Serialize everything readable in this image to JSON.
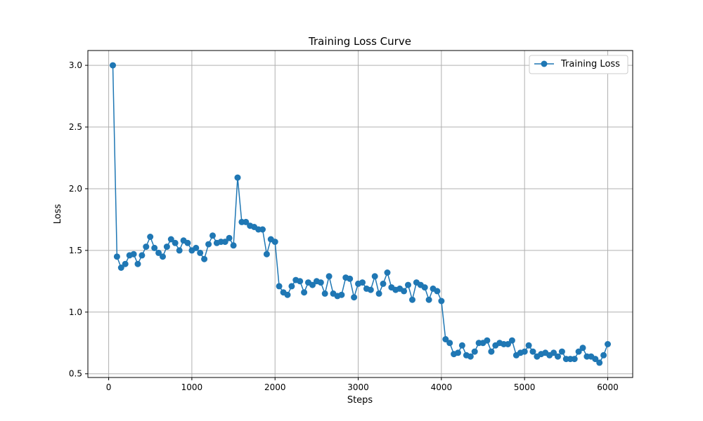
{
  "chart_data": {
    "type": "line",
    "title": "Training Loss Curve",
    "xlabel": "Steps",
    "ylabel": "Loss",
    "xlim": [
      -250,
      6300
    ],
    "ylim": [
      0.47,
      3.12
    ],
    "xticks": [
      0,
      1000,
      2000,
      3000,
      4000,
      5000,
      6000
    ],
    "yticks": [
      0.5,
      1.0,
      1.5,
      2.0,
      2.5,
      3.0
    ],
    "xtick_labels": [
      "0",
      "1000",
      "2000",
      "3000",
      "4000",
      "5000",
      "6000"
    ],
    "ytick_labels": [
      "0.5",
      "1.0",
      "1.5",
      "2.0",
      "2.5",
      "3.0"
    ],
    "grid": true,
    "legend_position": "top-right",
    "series": [
      {
        "name": "Training Loss",
        "color": "#1f77b4",
        "marker": "circle",
        "x": [
          50,
          100,
          150,
          200,
          250,
          300,
          350,
          400,
          450,
          500,
          550,
          600,
          650,
          700,
          750,
          800,
          850,
          900,
          950,
          1000,
          1050,
          1100,
          1150,
          1200,
          1250,
          1300,
          1350,
          1400,
          1450,
          1500,
          1550,
          1600,
          1650,
          1700,
          1750,
          1800,
          1850,
          1900,
          1950,
          2000,
          2050,
          2100,
          2150,
          2200,
          2250,
          2300,
          2350,
          2400,
          2450,
          2500,
          2550,
          2600,
          2650,
          2700,
          2750,
          2800,
          2850,
          2900,
          2950,
          3000,
          3050,
          3100,
          3150,
          3200,
          3250,
          3300,
          3350,
          3400,
          3450,
          3500,
          3550,
          3600,
          3650,
          3700,
          3750,
          3800,
          3850,
          3900,
          3950,
          4000,
          4050,
          4100,
          4150,
          4200,
          4250,
          4300,
          4350,
          4400,
          4450,
          4500,
          4550,
          4600,
          4650,
          4700,
          4750,
          4800,
          4850,
          4900,
          4950,
          5000,
          5050,
          5100,
          5150,
          5200,
          5250,
          5300,
          5350,
          5400,
          5450,
          5500,
          5550,
          5600,
          5650,
          5700,
          5750,
          5800,
          5850,
          5900,
          5950,
          6000
        ],
        "y": [
          3.0,
          1.45,
          1.36,
          1.39,
          1.46,
          1.47,
          1.39,
          1.46,
          1.53,
          1.61,
          1.52,
          1.48,
          1.45,
          1.53,
          1.59,
          1.56,
          1.5,
          1.58,
          1.56,
          1.5,
          1.52,
          1.48,
          1.43,
          1.55,
          1.62,
          1.56,
          1.57,
          1.57,
          1.6,
          1.54,
          2.09,
          1.73,
          1.73,
          1.7,
          1.69,
          1.67,
          1.67,
          1.47,
          1.59,
          1.57,
          1.21,
          1.16,
          1.14,
          1.21,
          1.26,
          1.25,
          1.16,
          1.24,
          1.22,
          1.25,
          1.24,
          1.15,
          1.29,
          1.15,
          1.13,
          1.14,
          1.28,
          1.27,
          1.12,
          1.23,
          1.24,
          1.19,
          1.18,
          1.29,
          1.15,
          1.23,
          1.32,
          1.2,
          1.18,
          1.19,
          1.17,
          1.22,
          1.1,
          1.24,
          1.22,
          1.2,
          1.1,
          1.19,
          1.17,
          1.09,
          0.78,
          0.75,
          0.66,
          0.67,
          0.73,
          0.65,
          0.64,
          0.68,
          0.75,
          0.75,
          0.77,
          0.68,
          0.73,
          0.75,
          0.74,
          0.74,
          0.77,
          0.65,
          0.67,
          0.68,
          0.73,
          0.68,
          0.64,
          0.66,
          0.67,
          0.65,
          0.67,
          0.64,
          0.68,
          0.62,
          0.62,
          0.62,
          0.68,
          0.71,
          0.64,
          0.64,
          0.62,
          0.59,
          0.65,
          0.74
        ]
      }
    ]
  }
}
